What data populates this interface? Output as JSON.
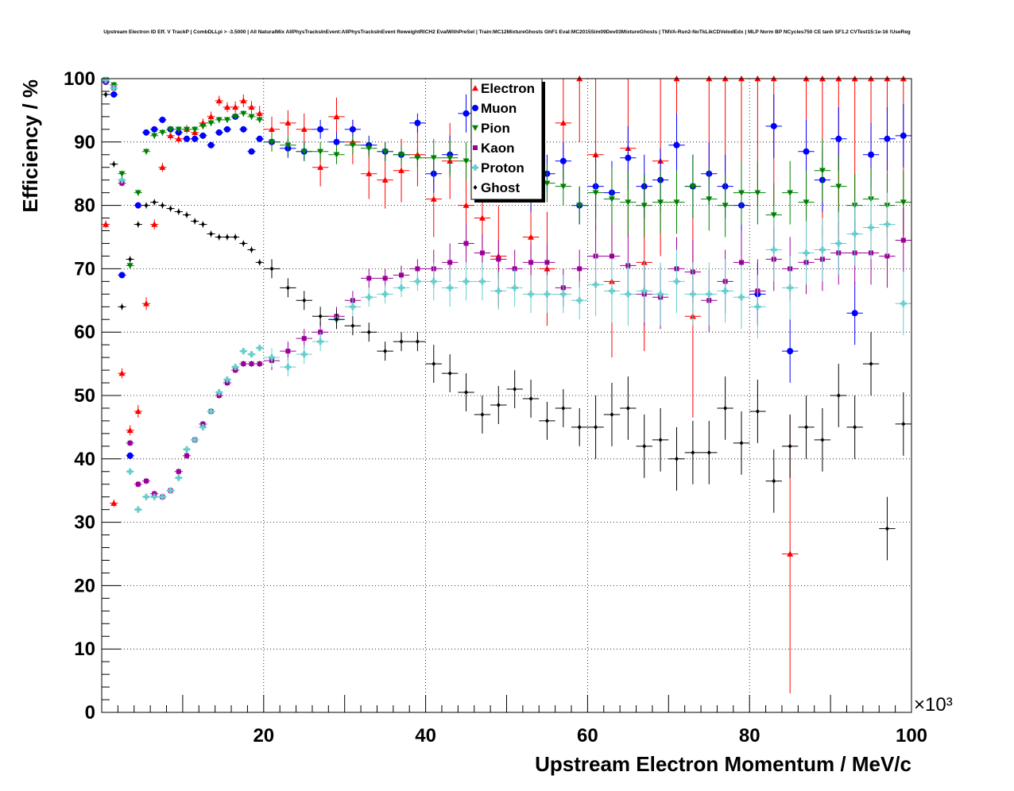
{
  "chart_data": {
    "type": "scatter",
    "title": "Upstream Electron ID Eff. V TrackP | CombDLLpi > -3.5000 | All NaturalMix AllPhysTracksInEvent:AllPhysTracksInEvent ReweightRICH2 EvalWithPreSel | Train:MC12MixtureGhosts GhF1 Eval:MC2015Sim09Dev03MixtureGhosts | TMVA-Run2-NoTkLikCDVelodEdx | MLP Norm BP NCycles750 CE tanh SF1.2 CVTest15:1e-16 !UseReg",
    "xlabel": "Upstream Electron Momentum / MeV/c",
    "ylabel": "Efficiency / %",
    "x_exponent_label": "×10³",
    "xlim": [
      0,
      100
    ],
    "ylim": [
      0,
      100
    ],
    "x_unit_scale": 1000,
    "x_ticks": [
      20,
      40,
      60,
      80,
      100
    ],
    "y_ticks": [
      0,
      10,
      20,
      30,
      40,
      50,
      60,
      70,
      80,
      90,
      100
    ],
    "grid": true,
    "legend_position": "top-center",
    "series": [
      {
        "name": "Electron",
        "color": "#ff0000",
        "marker": "triangle-up",
        "x": [
          0.5,
          1.5,
          2.5,
          3.5,
          4.5,
          5.5,
          6.5,
          7.5,
          8.5,
          9.5,
          10.5,
          11.5,
          12.5,
          13.5,
          14.5,
          15.5,
          16.5,
          17.5,
          18.5,
          19.5,
          21,
          23,
          25,
          27,
          29,
          31,
          33,
          35,
          37,
          39,
          41,
          43,
          45,
          47,
          49,
          51,
          53,
          55,
          57,
          59,
          61,
          63,
          65,
          67,
          69,
          71,
          73,
          75,
          77,
          79,
          81,
          83,
          85,
          87,
          89,
          91,
          93,
          95,
          97,
          99
        ],
        "y": [
          77,
          33,
          53.5,
          44.5,
          47.5,
          64.5,
          77,
          86,
          91,
          90.5,
          92,
          91.5,
          93,
          94,
          96.5,
          95.5,
          95.5,
          96.5,
          95.5,
          94.5,
          92,
          93,
          92,
          86,
          94,
          90,
          85,
          84,
          85.5,
          88,
          81,
          87,
          80,
          78,
          72,
          90,
          75,
          70,
          93,
          100,
          88,
          68,
          89,
          71,
          87,
          100,
          62.5,
          100,
          100,
          100,
          100,
          100,
          25,
          100,
          100,
          100,
          100,
          100,
          100,
          100
        ],
        "err": [
          0.6,
          0.6,
          0.8,
          0.8,
          1,
          1,
          0.8,
          0.7,
          0.7,
          0.7,
          0.7,
          0.7,
          0.7,
          0.8,
          0.8,
          0.8,
          0.9,
          1,
          1,
          1.2,
          2,
          2,
          2.5,
          3,
          3,
          3.5,
          4,
          4.5,
          5,
          5,
          6,
          6,
          7,
          7,
          8,
          8,
          9,
          9,
          10,
          10,
          12,
          12,
          14,
          14,
          15,
          15,
          16,
          16,
          18,
          18,
          20,
          20,
          22,
          22,
          25,
          25,
          25,
          25,
          25,
          25
        ]
      },
      {
        "name": "Muon",
        "color": "#0000ff",
        "marker": "circle",
        "x": [
          0.5,
          1.5,
          2.5,
          3.5,
          4.5,
          5.5,
          6.5,
          7.5,
          8.5,
          9.5,
          10.5,
          11.5,
          12.5,
          13.5,
          14.5,
          15.5,
          16.5,
          17.5,
          18.5,
          19.5,
          21,
          23,
          25,
          27,
          29,
          31,
          33,
          35,
          37,
          39,
          41,
          43,
          45,
          47,
          49,
          51,
          53,
          55,
          57,
          59,
          61,
          63,
          65,
          67,
          69,
          71,
          73,
          75,
          77,
          79,
          81,
          83,
          85,
          87,
          89,
          91,
          93,
          95,
          97,
          99
        ],
        "y": [
          99.5,
          97.5,
          69,
          40.5,
          80,
          91.5,
          92,
          93.5,
          92,
          91.5,
          90.5,
          90.5,
          91,
          89.5,
          91.5,
          92,
          94,
          92,
          88.5,
          90.5,
          90,
          89,
          88.5,
          92,
          90,
          92,
          89.5,
          88.5,
          88,
          93,
          85,
          88,
          94.5,
          87,
          88,
          90,
          82,
          85,
          87,
          80,
          83,
          82,
          87.5,
          83,
          84,
          89.5,
          83,
          85,
          83,
          80,
          66,
          92.5,
          57,
          88.5,
          84,
          90.5,
          63,
          88,
          90.5,
          91
        ]
      },
      {
        "name": "Pion",
        "color": "#008000",
        "marker": "triangle-down",
        "x": [
          0.5,
          1.5,
          2.5,
          3.5,
          4.5,
          5.5,
          6.5,
          7.5,
          8.5,
          9.5,
          10.5,
          11.5,
          12.5,
          13.5,
          14.5,
          15.5,
          16.5,
          17.5,
          18.5,
          19.5,
          21,
          23,
          25,
          27,
          29,
          31,
          33,
          35,
          37,
          39,
          41,
          43,
          45,
          47,
          49,
          51,
          53,
          55,
          57,
          59,
          61,
          63,
          65,
          67,
          69,
          71,
          73,
          75,
          77,
          79,
          81,
          83,
          85,
          87,
          89,
          91,
          93,
          95,
          97,
          99
        ],
        "y": [
          99.8,
          99,
          85,
          70.5,
          82,
          88.5,
          91,
          91.5,
          92,
          92,
          92,
          92,
          92.5,
          93,
          93.5,
          93.5,
          94,
          94.5,
          94,
          93.5,
          90,
          89.5,
          88.5,
          88.5,
          88,
          89.5,
          89,
          88.5,
          88,
          87.5,
          87.5,
          87.5,
          87,
          86,
          85,
          84,
          83,
          83.5,
          83,
          80,
          82,
          81,
          80.5,
          80,
          80.5,
          80.5,
          83,
          81,
          80,
          82,
          82,
          78.5,
          82,
          80.5,
          85.5,
          83,
          80,
          81,
          80,
          80.5
        ]
      },
      {
        "name": "Kaon",
        "color": "#990099",
        "marker": "square",
        "x": [
          0.5,
          1.5,
          2.5,
          3.5,
          4.5,
          5.5,
          6.5,
          7.5,
          8.5,
          9.5,
          10.5,
          11.5,
          12.5,
          13.5,
          14.5,
          15.5,
          16.5,
          17.5,
          18.5,
          19.5,
          21,
          23,
          25,
          27,
          29,
          31,
          33,
          35,
          37,
          39,
          41,
          43,
          45,
          47,
          49,
          51,
          53,
          55,
          57,
          59,
          61,
          63,
          65,
          67,
          69,
          71,
          73,
          75,
          77,
          79,
          81,
          83,
          85,
          87,
          89,
          91,
          93,
          95,
          97,
          99
        ],
        "y": [
          99.5,
          98.5,
          83.5,
          42.5,
          36,
          36.5,
          34.5,
          34,
          35,
          38,
          40.5,
          43,
          45.5,
          47.5,
          50,
          52,
          54,
          55,
          55,
          55,
          55.5,
          57,
          59,
          60,
          62.5,
          65,
          68.5,
          68.5,
          69,
          70,
          70,
          71,
          74,
          72.5,
          71.5,
          70,
          71,
          71,
          67,
          70,
          72,
          72,
          70.5,
          66,
          65.5,
          70,
          69.5,
          65,
          68,
          71,
          66.5,
          71.5,
          70,
          71,
          71.5,
          72.5,
          72.5,
          72.5,
          72,
          74.5
        ]
      },
      {
        "name": "Proton",
        "color": "#66cccc",
        "marker": "cross",
        "x": [
          0.5,
          1.5,
          2.5,
          3.5,
          4.5,
          5.5,
          6.5,
          7.5,
          8.5,
          9.5,
          10.5,
          11.5,
          12.5,
          13.5,
          14.5,
          15.5,
          16.5,
          17.5,
          18.5,
          19.5,
          21,
          23,
          25,
          27,
          29,
          31,
          33,
          35,
          37,
          39,
          41,
          43,
          45,
          47,
          49,
          51,
          53,
          55,
          57,
          59,
          61,
          63,
          65,
          67,
          69,
          71,
          73,
          75,
          77,
          79,
          81,
          83,
          85,
          87,
          89,
          91,
          93,
          95,
          97,
          99
        ],
        "y": [
          99.8,
          98.5,
          84,
          38,
          32,
          34,
          34,
          34,
          35,
          37,
          41.5,
          43,
          45,
          47.5,
          50.5,
          52.5,
          54.5,
          57,
          56.5,
          57.5,
          56,
          54.5,
          56.5,
          58.5,
          62,
          64,
          65.5,
          66,
          67,
          68,
          68,
          67,
          68,
          68,
          66.5,
          67,
          66,
          66,
          66,
          65,
          67.5,
          66.5,
          66,
          66.5,
          66,
          68,
          66,
          66,
          66.5,
          65.5,
          64,
          73,
          67,
          72.5,
          73,
          74,
          75.5,
          76.5,
          77,
          64.5
        ]
      },
      {
        "name": "Ghost",
        "color": "#000000",
        "marker": "diamond",
        "x": [
          0.5,
          1.5,
          2.5,
          3.5,
          4.5,
          5.5,
          6.5,
          7.5,
          8.5,
          9.5,
          10.5,
          11.5,
          12.5,
          13.5,
          14.5,
          15.5,
          16.5,
          17.5,
          18.5,
          19.5,
          21,
          23,
          25,
          27,
          29,
          31,
          33,
          35,
          37,
          39,
          41,
          43,
          45,
          47,
          49,
          51,
          53,
          55,
          57,
          59,
          61,
          63,
          65,
          67,
          69,
          71,
          73,
          75,
          77,
          79,
          81,
          83,
          85,
          87,
          89,
          91,
          93,
          95,
          97,
          99
        ],
        "y": [
          97.5,
          86.5,
          64,
          71.5,
          77,
          80,
          80.5,
          80,
          79.5,
          79,
          78.5,
          77.5,
          77,
          75.5,
          75,
          75,
          75,
          74,
          73,
          71,
          70,
          67,
          65,
          62.5,
          62,
          61,
          60,
          57,
          58.5,
          58.5,
          55,
          53.5,
          50.5,
          47,
          48.5,
          51,
          49.5,
          46,
          48,
          45,
          45,
          47,
          48,
          42,
          43,
          40,
          41,
          41,
          48,
          42.5,
          47.5,
          36.5,
          42,
          45,
          43,
          50,
          45,
          55,
          29,
          45.5
        ]
      }
    ],
    "legend": [
      "Electron",
      "Muon",
      "Pion",
      "Kaon",
      "Proton",
      "Ghost"
    ]
  }
}
